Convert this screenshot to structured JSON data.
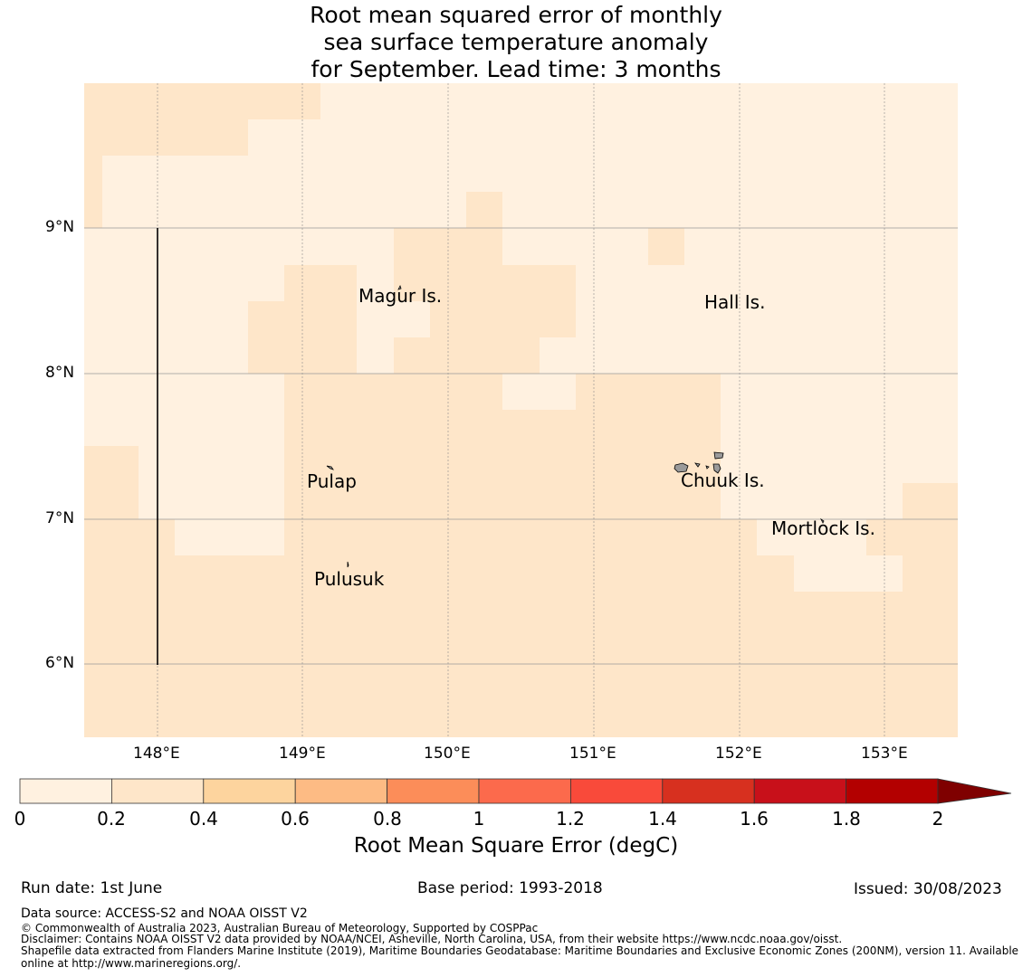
{
  "title": {
    "line1": "Root mean squared error of monthly",
    "line2": "sea surface temperature anomaly",
    "line3": "for September. Lead time: 3 months"
  },
  "map": {
    "latitude_labels": [
      "9°N",
      "8°N",
      "7°N",
      "6°N"
    ],
    "longitude_labels": [
      "148°E",
      "149°E",
      "150°E",
      "151°E",
      "152°E",
      "153°E"
    ],
    "places": {
      "magur": "Magur Is.",
      "hall": "Hall Is.",
      "pulap": "Pulap",
      "chuuk": "Chuuk Is.",
      "mortlock": "Mortlock Is.",
      "pulusuk": "Pulusuk"
    },
    "colors": {
      "rmse_0_0.2": "#fff1e0",
      "rmse_0.2_0.4": "#fee6c9",
      "land": "#9a9a9a"
    }
  },
  "colorbar": {
    "ticks": [
      "0",
      "0.2",
      "0.4",
      "0.6",
      "0.8",
      "1",
      "1.2",
      "1.4",
      "1.6",
      "1.8",
      "2"
    ],
    "colors": [
      "#fff1e0",
      "#fee6c9",
      "#fdd49e",
      "#fdbb84",
      "#fc8d59",
      "#fc6a4c",
      "#f94a3a",
      "#d7301f",
      "#c8101a",
      "#b30000",
      "#7f0000"
    ],
    "label": "Root Mean Square Error (degC)"
  },
  "footer": {
    "run_date": "Run date: 1st June",
    "base_period": "Base period: 1993-2018",
    "issued": "Issued: 30/08/2023",
    "data_source": "Data source: ACCESS-S2 and NOAA OISST V2",
    "copyright": "© Commonwealth of Australia 2023, Australian Bureau of Meteorology, Supported by COSPPac",
    "disclaimer": "Disclaimer: Contains NOAA OISST V2 data provided by NOAA/NCEI, Asheville, North Carolina, USA, from their website https://www.ncdc.noaa.gov/oisst.",
    "shapefile_line1": "Shapefile data extracted from Flanders Marine Institute (2019), Maritime Boundaries Geodatabase: Maritime Boundaries and Exclusive Economic Zones (200NM), version 11. Available",
    "shapefile_line2": "online at http://www.marineregions.org/."
  }
}
